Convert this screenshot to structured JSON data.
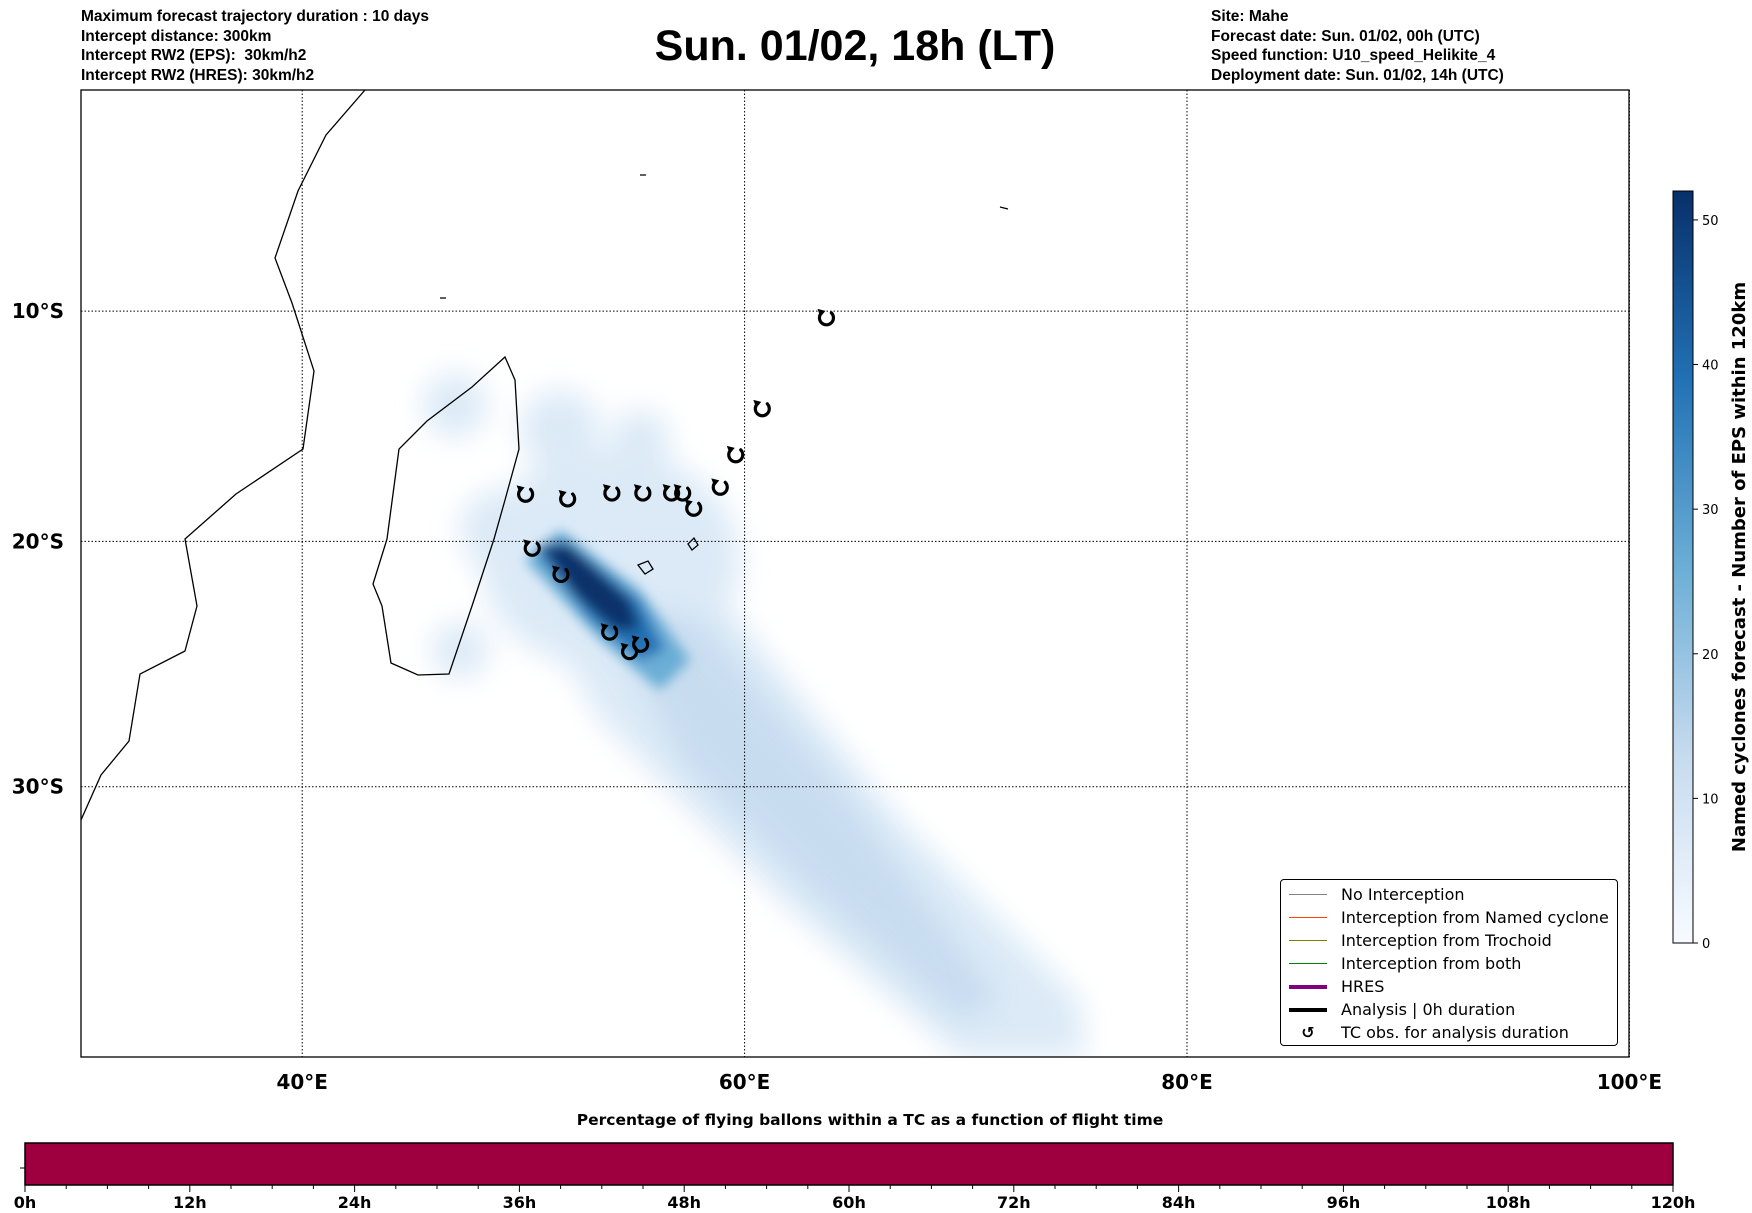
{
  "header": {
    "left": [
      "Maximum forecast trajectory duration : 10 days",
      "Intercept distance: 300km",
      "Intercept RW2 (EPS):  30km/h2",
      "Intercept RW2 (HRES): 30km/h2"
    ],
    "title": "Sun. 01/02, 18h (LT)",
    "right": [
      "Site: Mahe",
      "Forecast date: Sun. 01/02, 00h (UTC)",
      "Speed function: U10_speed_Helikite_4",
      "Deployment date: Sun. 01/02, 14h (UTC)"
    ]
  },
  "chart_data": {
    "type": "heatmap",
    "map": {
      "lon_range": [
        30,
        100
      ],
      "lat_range": [
        0,
        -40.3
      ],
      "projection": "mercator",
      "lon_ticks": [
        {
          "v": 40,
          "label": "40°E"
        },
        {
          "v": 60,
          "label": "60°E"
        },
        {
          "v": 80,
          "label": "80°E"
        },
        {
          "v": 100,
          "label": "100°E"
        }
      ],
      "lat_ticks": [
        {
          "v": -10,
          "label": "10°S"
        },
        {
          "v": -20,
          "label": "20°S"
        },
        {
          "v": -30,
          "label": "30°S"
        }
      ],
      "grid": true
    },
    "tc_obs": [
      [
        50.1,
        -18.0
      ],
      [
        52.0,
        -18.2
      ],
      [
        54.0,
        -17.95
      ],
      [
        55.4,
        -17.95
      ],
      [
        56.7,
        -17.95
      ],
      [
        57.2,
        -17.95
      ],
      [
        57.7,
        -18.6
      ],
      [
        58.9,
        -17.7
      ],
      [
        59.6,
        -16.3
      ],
      [
        60.8,
        -14.3
      ],
      [
        63.7,
        -10.3
      ],
      [
        50.4,
        -20.3
      ],
      [
        51.7,
        -21.4
      ],
      [
        53.9,
        -23.8
      ],
      [
        54.8,
        -24.6
      ],
      [
        55.3,
        -24.3
      ]
    ],
    "tc_symbol": "↺",
    "colorbar": {
      "label": "Named cyclones forecast - Number of EPS within 120km",
      "range": [
        0,
        52
      ],
      "ticks": [
        0,
        10,
        20,
        30,
        40,
        50
      ],
      "color_low": "#f7fbff",
      "color_high": "#08306b"
    },
    "legend": {
      "placement": "lower-right",
      "items": [
        {
          "label": "No Interception",
          "color": "#808080",
          "w": 1
        },
        {
          "label": "Interception from Named cyclone",
          "color": "#ff4500",
          "w": 1
        },
        {
          "label": "Interception from Trochoid",
          "color": "#808000",
          "w": 1
        },
        {
          "label": "Interception from both",
          "color": "#008000",
          "w": 1
        },
        {
          "label": "HRES",
          "color": "#800080",
          "w": 4
        },
        {
          "label": "Analysis | 0h duration",
          "color": "#000000",
          "w": 4
        },
        {
          "label": "TC obs. for analysis duration",
          "color": "#000000",
          "w": 0
        }
      ]
    },
    "timebar": {
      "title": "Percentage of flying ballons within a TC as a function of flight time",
      "range_h": [
        0,
        120
      ],
      "ticks": [
        "0h",
        "12h",
        "24h",
        "36h",
        "48h",
        "60h",
        "72h",
        "84h",
        "96h",
        "108h",
        "120h"
      ],
      "color": "#9e003f"
    }
  }
}
